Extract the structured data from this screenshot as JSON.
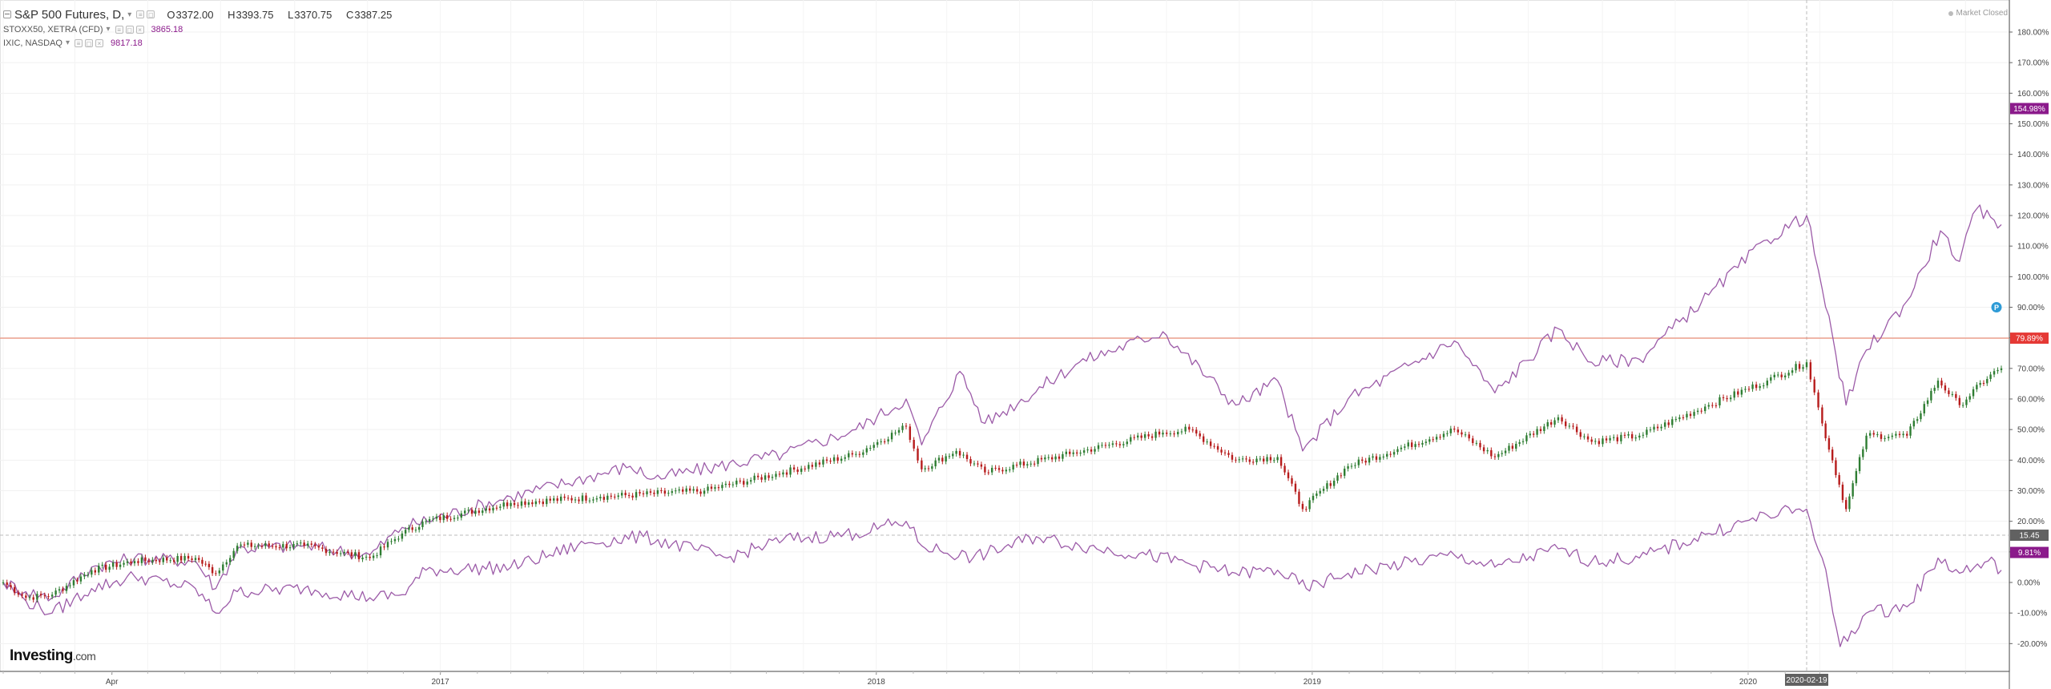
{
  "legend": {
    "main_title": "S&P 500 Futures, D,",
    "ohlc": [
      {
        "key": "O",
        "value": "3372.00"
      },
      {
        "key": "H",
        "value": "3393.75"
      },
      {
        "key": "L",
        "value": "3370.75"
      },
      {
        "key": "C",
        "value": "3387.25"
      }
    ],
    "comparisons": [
      {
        "name": "STOXX50, XETRA (CFD)",
        "value": "3865.18"
      },
      {
        "name": "IXIC, NASDAQ",
        "value": "9817.18"
      }
    ]
  },
  "market_status": "Market Closed",
  "logo": {
    "brand": "Investing",
    "suffix": ".com"
  },
  "colors": {
    "up": "#2e7d32",
    "down": "#b71c1c",
    "compare": "#9c5ba8",
    "price_line": "#e8836b",
    "last_price_bg": "#e53935",
    "compare_badge_bg": "#8b1a8b",
    "crosshair_badge_bg": "#616161"
  },
  "chart_data": {
    "type": "line",
    "title": "S&P 500 Futures, D,",
    "y_unit": "%",
    "ylim": [
      -25,
      185
    ],
    "y_ticks": [
      "-20.00%",
      "-10.00%",
      "0.00%",
      "10.00%",
      "20.00%",
      "30.00%",
      "40.00%",
      "50.00%",
      "60.00%",
      "70.00%",
      "80.00%",
      "90.00%",
      "100.00%",
      "110.00%",
      "120.00%",
      "130.00%",
      "140.00%",
      "150.00%",
      "160.00%",
      "170.00%",
      "180.00%"
    ],
    "x_ticks": [
      "Apr",
      "2017",
      "2018",
      "2019",
      "2020"
    ],
    "x_range": [
      "2016-01-01",
      "2020-07-31"
    ],
    "grid": true,
    "crosshair": {
      "date": "2020-02-19",
      "label": "2020-02-19",
      "y_value": 15.45,
      "y_label": "15.45"
    },
    "price_line": {
      "value": 79.89,
      "label": "79.89%"
    },
    "series": [
      {
        "name": "S&P 500 Futures, D,",
        "style": "candles",
        "points": [
          [
            "2016-01-01",
            0
          ],
          [
            "2016-01-20",
            -5
          ],
          [
            "2016-02-11",
            -4
          ],
          [
            "2016-03-15",
            4
          ],
          [
            "2016-04-20",
            7
          ],
          [
            "2016-06-10",
            8
          ],
          [
            "2016-06-27",
            3
          ],
          [
            "2016-07-15",
            12
          ],
          [
            "2016-09-09",
            12
          ],
          [
            "2016-11-03",
            8
          ],
          [
            "2016-11-30",
            16
          ],
          [
            "2016-12-20",
            20
          ],
          [
            "2017-03-01",
            26
          ],
          [
            "2017-05-15",
            28
          ],
          [
            "2017-08-10",
            30
          ],
          [
            "2017-10-15",
            36
          ],
          [
            "2017-12-15",
            42
          ],
          [
            "2018-01-26",
            51
          ],
          [
            "2018-02-08",
            37
          ],
          [
            "2018-03-09",
            43
          ],
          [
            "2018-04-02",
            36
          ],
          [
            "2018-06-12",
            42
          ],
          [
            "2018-08-29",
            49
          ],
          [
            "2018-09-20",
            50
          ],
          [
            "2018-10-29",
            40
          ],
          [
            "2018-12-03",
            41
          ],
          [
            "2018-12-24",
            24
          ],
          [
            "2019-01-31",
            38
          ],
          [
            "2019-04-30",
            50
          ],
          [
            "2019-06-03",
            41
          ],
          [
            "2019-07-26",
            54
          ],
          [
            "2019-08-23",
            46
          ],
          [
            "2019-10-02",
            48
          ],
          [
            "2019-11-29",
            58
          ],
          [
            "2020-01-17",
            66
          ],
          [
            "2020-02-19",
            72
          ],
          [
            "2020-03-03",
            52
          ],
          [
            "2020-03-23",
            24
          ],
          [
            "2020-04-09",
            48
          ],
          [
            "2020-05-13",
            48
          ],
          [
            "2020-06-08",
            66
          ],
          [
            "2020-06-26",
            58
          ],
          [
            "2020-07-22",
            68
          ],
          [
            "2020-07-31",
            70
          ]
        ]
      },
      {
        "name": "IXIC, NASDAQ",
        "style": "line",
        "points": [
          [
            "2016-01-01",
            0
          ],
          [
            "2016-01-20",
            -3
          ],
          [
            "2016-02-11",
            -5
          ],
          [
            "2016-03-15",
            5
          ],
          [
            "2016-04-20",
            8
          ],
          [
            "2016-06-10",
            7
          ],
          [
            "2016-06-27",
            -2
          ],
          [
            "2016-07-15",
            11
          ],
          [
            "2016-09-09",
            12
          ],
          [
            "2016-11-03",
            9
          ],
          [
            "2016-11-30",
            18
          ],
          [
            "2017-03-01",
            28
          ],
          [
            "2017-06-09",
            38
          ],
          [
            "2017-06-29",
            34
          ],
          [
            "2017-10-15",
            42
          ],
          [
            "2017-12-15",
            50
          ],
          [
            "2018-01-26",
            60
          ],
          [
            "2018-02-08",
            45
          ],
          [
            "2018-03-12",
            69
          ],
          [
            "2018-04-02",
            52
          ],
          [
            "2018-06-20",
            72
          ],
          [
            "2018-08-29",
            82
          ],
          [
            "2018-10-29",
            58
          ],
          [
            "2018-12-03",
            66
          ],
          [
            "2018-12-24",
            43
          ],
          [
            "2019-01-31",
            60
          ],
          [
            "2019-04-30",
            79
          ],
          [
            "2019-06-03",
            62
          ],
          [
            "2019-07-26",
            83
          ],
          [
            "2019-08-23",
            72
          ],
          [
            "2019-10-02",
            73
          ],
          [
            "2019-11-29",
            94
          ],
          [
            "2020-01-17",
            112
          ],
          [
            "2020-02-19",
            120
          ],
          [
            "2020-03-03",
            96
          ],
          [
            "2020-03-23",
            58
          ],
          [
            "2020-04-09",
            76
          ],
          [
            "2020-05-13",
            92
          ],
          [
            "2020-06-10",
            115
          ],
          [
            "2020-06-26",
            105
          ],
          [
            "2020-07-10",
            122
          ],
          [
            "2020-07-31",
            117
          ]
        ]
      },
      {
        "name": "STOXX50, XETRA (CFD)",
        "style": "line",
        "points": [
          [
            "2016-01-01",
            0
          ],
          [
            "2016-01-20",
            -6
          ],
          [
            "2016-02-11",
            -10
          ],
          [
            "2016-03-15",
            -2
          ],
          [
            "2016-04-20",
            2
          ],
          [
            "2016-06-10",
            -2
          ],
          [
            "2016-06-27",
            -10
          ],
          [
            "2016-07-15",
            -3
          ],
          [
            "2016-09-09",
            -2
          ],
          [
            "2016-11-03",
            -5
          ],
          [
            "2016-11-30",
            -4
          ],
          [
            "2016-12-20",
            4
          ],
          [
            "2017-03-01",
            5
          ],
          [
            "2017-05-05",
            13
          ],
          [
            "2017-06-20",
            15
          ],
          [
            "2017-08-29",
            8
          ],
          [
            "2017-10-15",
            14
          ],
          [
            "2017-12-15",
            16
          ],
          [
            "2018-01-26",
            20
          ],
          [
            "2018-02-08",
            12
          ],
          [
            "2018-03-23",
            8
          ],
          [
            "2018-05-15",
            15
          ],
          [
            "2018-06-20",
            12
          ],
          [
            "2018-08-15",
            9
          ],
          [
            "2018-10-29",
            3
          ],
          [
            "2018-12-03",
            4
          ],
          [
            "2018-12-27",
            -2
          ],
          [
            "2019-01-31",
            3
          ],
          [
            "2019-04-30",
            9
          ],
          [
            "2019-06-03",
            5
          ],
          [
            "2019-07-26",
            11
          ],
          [
            "2019-08-23",
            7
          ],
          [
            "2019-10-02",
            8
          ],
          [
            "2019-11-29",
            16
          ],
          [
            "2020-01-17",
            22
          ],
          [
            "2020-02-19",
            24
          ],
          [
            "2020-03-03",
            8
          ],
          [
            "2020-03-18",
            -21
          ],
          [
            "2020-04-09",
            -10
          ],
          [
            "2020-05-13",
            -8
          ],
          [
            "2020-06-08",
            8
          ],
          [
            "2020-06-26",
            3
          ],
          [
            "2020-07-20",
            7
          ],
          [
            "2020-07-31",
            4
          ]
        ]
      }
    ],
    "axis_badges": [
      {
        "label": "154.98%",
        "value": 154.98,
        "color_key": "compare_badge_bg"
      },
      {
        "label": "79.89%",
        "value": 79.89,
        "color_key": "last_price_bg"
      },
      {
        "label": "15.45",
        "value": 15.45,
        "color_key": "crosshair_badge_bg"
      },
      {
        "label": "9.81%",
        "value": 9.81,
        "color_key": "compare_badge_bg"
      }
    ]
  }
}
